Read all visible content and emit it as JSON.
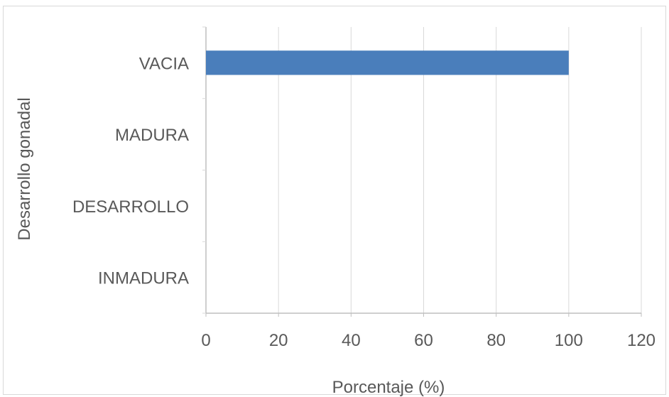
{
  "chart_data": {
    "type": "bar",
    "orientation": "horizontal",
    "title": "",
    "xlabel": "Porcentaje (%)",
    "ylabel": "Desarrollo gonadal",
    "categories": [
      "VACIA",
      "MADURA",
      "DESARROLLO",
      "INMADURA"
    ],
    "values": [
      100,
      0,
      0,
      0
    ],
    "xlim": [
      0,
      120
    ],
    "xticks": [
      "0",
      "20",
      "40",
      "60",
      "80",
      "100",
      "120"
    ],
    "grid": "vertical",
    "legend": "none",
    "bar_color": "#4a7ebb"
  }
}
